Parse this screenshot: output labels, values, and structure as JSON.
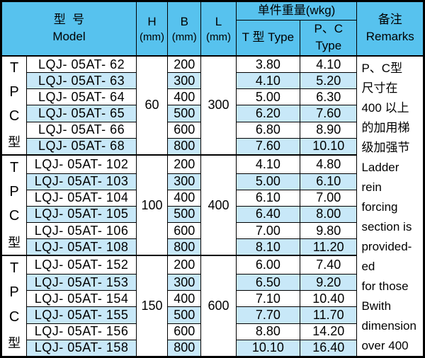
{
  "colors": {
    "header_bg": "#57c2ee",
    "stripe_bg": "#c8e8f8",
    "border": "#000000"
  },
  "table": {
    "header": {
      "model_cn": "型  号",
      "model_en": "Model",
      "h_label": "H",
      "b_label": "B",
      "l_label": "L",
      "mm": "(mm)",
      "weight_label": "单件重量(wkg)",
      "t_type_label": "T 型 Type",
      "pc_type_label": "P、C Type",
      "remarks_cn": "备注",
      "remarks_en": "Remarks"
    },
    "side_label_chars": [
      "T",
      "P",
      "C",
      "型"
    ],
    "groups": [
      {
        "h": "60",
        "l": "300",
        "rows": [
          {
            "model": "LQJ- 05AT- 62",
            "b": "200",
            "t": "3.80",
            "pc": "4.10"
          },
          {
            "model": "LQJ- 05AT- 63",
            "b": "300",
            "t": "4.10",
            "pc": "5.20"
          },
          {
            "model": "LQJ- 05AT- 64",
            "b": "400",
            "t": "5.00",
            "pc": "6.30"
          },
          {
            "model": "LQJ- 05AT- 65",
            "b": "500",
            "t": "6.20",
            "pc": "7.60"
          },
          {
            "model": "LQJ- 05AT- 66",
            "b": "600",
            "t": "6.80",
            "pc": "8.90"
          },
          {
            "model": "LQJ- 05AT- 68",
            "b": "800",
            "t": "7.60",
            "pc": "10.10"
          }
        ]
      },
      {
        "h": "100",
        "l": "400",
        "rows": [
          {
            "model": "LQJ- 05AT- 102",
            "b": "200",
            "t": "4.10",
            "pc": "4.80"
          },
          {
            "model": "LQJ- 05AT- 103",
            "b": "300",
            "t": "5.00",
            "pc": "6.10"
          },
          {
            "model": "LQJ- 05AT- 104",
            "b": "400",
            "t": "6.10",
            "pc": "7.00"
          },
          {
            "model": "LQJ- 05AT- 105",
            "b": "500",
            "t": "6.40",
            "pc": "8.00"
          },
          {
            "model": "LQJ- 05AT- 106",
            "b": "600",
            "t": "7.00",
            "pc": "9.80"
          },
          {
            "model": "LQJ- 05AT- 108",
            "b": "800",
            "t": "8.10",
            "pc": "11.20"
          }
        ]
      },
      {
        "h": "150",
        "l": "600",
        "rows": [
          {
            "model": "LQJ- 05AT- 152",
            "b": "200",
            "t": "6.00",
            "pc": "7.40"
          },
          {
            "model": "LQJ- 05AT- 153",
            "b": "300",
            "t": "6.50",
            "pc": "9.20"
          },
          {
            "model": "LQJ- 05AT- 154",
            "b": "400",
            "t": "7.10",
            "pc": "10.40"
          },
          {
            "model": "LQJ- 05AT- 155",
            "b": "500",
            "t": "7.70",
            "pc": "11.70"
          },
          {
            "model": "LQJ- 05AT- 156",
            "b": "600",
            "t": "8.80",
            "pc": "14.20"
          },
          {
            "model": "LQJ- 05AT- 158",
            "b": "800",
            "t": "10.10",
            "pc": "16.40"
          }
        ]
      }
    ],
    "remarks_lines": [
      "P、C型",
      "尺寸在",
      "400 以上",
      "的加用梯",
      "级加强节",
      "Ladder",
      "rein",
      "forcing",
      "section is",
      "provided-",
      "ed",
      "for those",
      "Bwith",
      "dimension",
      "over 400"
    ]
  }
}
